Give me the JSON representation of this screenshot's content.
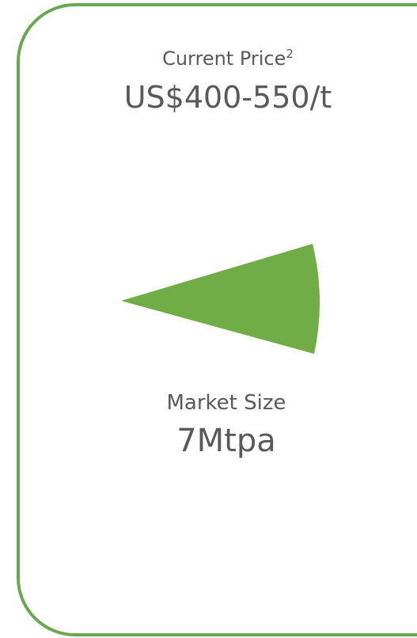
{
  "price": {
    "label": "Current Price",
    "footnote": "2",
    "value": "US$400-550/t"
  },
  "market": {
    "label": "Market Size",
    "value": "7Mtpa"
  }
}
